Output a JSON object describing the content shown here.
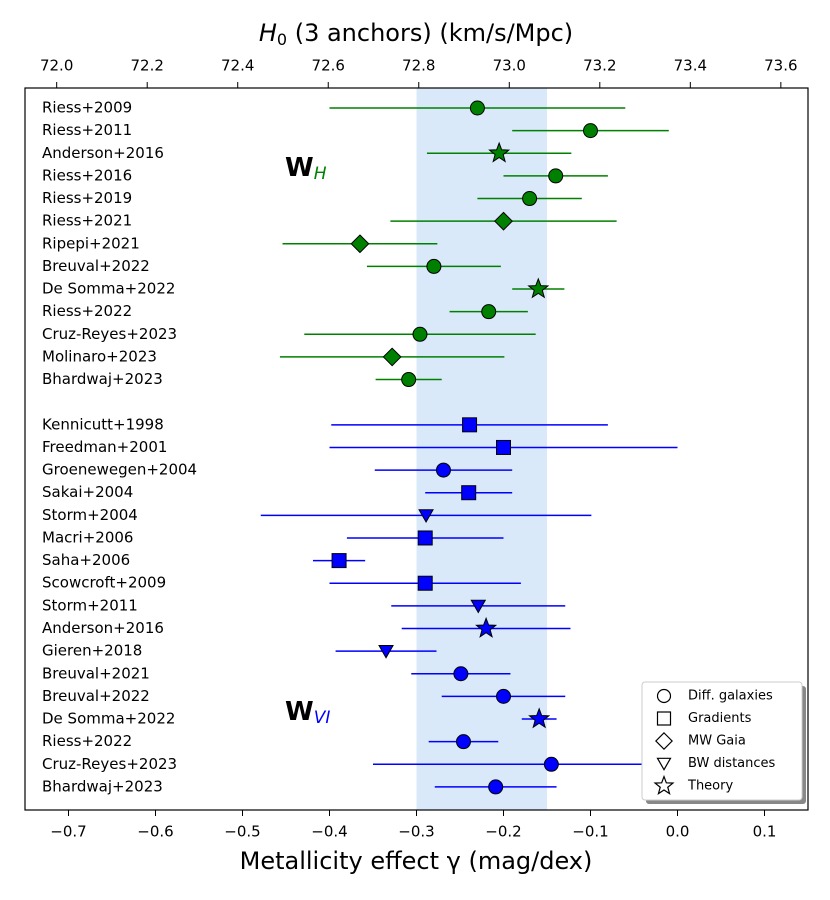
{
  "chart_data": {
    "type": "forest",
    "xlabel": "Metallicity effect γ (mag/dex)",
    "x2label": {
      "main": "H",
      "sub": "0",
      "rest": " (3 anchors) (km/s/Mpc)"
    },
    "xlim": [
      -0.75,
      0.15
    ],
    "xticks": [
      {
        "value": -0.7,
        "label": "−0.7"
      },
      {
        "value": -0.6,
        "label": "−0.6"
      },
      {
        "value": -0.5,
        "label": "−0.5"
      },
      {
        "value": -0.4,
        "label": "−0.4"
      },
      {
        "value": -0.3,
        "label": "−0.3"
      },
      {
        "value": -0.2,
        "label": "−0.2"
      },
      {
        "value": -0.1,
        "label": "−0.1"
      },
      {
        "value": 0,
        "label": "0.0"
      },
      0.1
    ],
    "x2lim": [
      71.93,
      73.66
    ],
    "x2ticks": [
      {
        "value": 72,
        "label": "72.0"
      },
      72.2,
      72.4,
      72.6,
      72.8,
      {
        "value": 73,
        "label": "73.0"
      },
      73.2,
      73.4,
      73.6
    ],
    "band": [
      -0.3,
      -0.15
    ],
    "band_color": "#d9e9f9",
    "groups": [
      {
        "label": "W",
        "label_sub": "H",
        "color": "#008000",
        "categories": [
          "Riess+2009",
          "Riess+2011",
          "Anderson+2016",
          "Riess+2016",
          "Riess+2019",
          "Riess+2021",
          "Ripepi+2021",
          "Breuval+2022",
          "De Somma+2022",
          "Riess+2022",
          "Cruz-Reyes+2023",
          "Molinaro+2023",
          "Bhardwaj+2023"
        ],
        "values": [
          -0.23,
          -0.1,
          -0.205,
          -0.14,
          -0.17,
          -0.2,
          -0.365,
          -0.28,
          -0.16,
          -0.217,
          -0.296,
          -0.328,
          -0.309
        ],
        "errors": [
          0.17,
          0.09,
          0.083,
          0.06,
          0.06,
          0.13,
          0.089,
          0.077,
          0.03,
          0.045,
          0.133,
          0.129,
          0.038
        ],
        "markers": [
          "circle",
          "circle",
          "star",
          "circle",
          "circle",
          "diamond",
          "diamond",
          "circle",
          "star",
          "circle",
          "circle",
          "diamond",
          "circle"
        ]
      },
      {
        "label": "W",
        "label_sub": "VI",
        "color": "#0000ff",
        "categories": [
          "Kennicutt+1998",
          "Freedman+2001",
          "Groenewegen+2004",
          "Sakai+2004",
          "Storm+2004",
          "Macri+2006",
          "Saha+2006",
          "Scowcroft+2009",
          "Storm+2011",
          "Anderson+2016",
          "Gieren+2018",
          "Breuval+2021",
          "Breuval+2022",
          "De Somma+2022",
          "Riess+2022",
          "Cruz-Reyes+2023",
          "Bhardwaj+2023"
        ],
        "values": [
          -0.239,
          -0.2,
          -0.269,
          -0.24,
          -0.289,
          -0.29,
          -0.389,
          -0.29,
          -0.229,
          -0.22,
          -0.335,
          -0.249,
          -0.2,
          -0.159,
          -0.246,
          -0.145,
          -0.209
        ],
        "errors": [
          0.159,
          0.2,
          0.079,
          0.05,
          0.19,
          0.09,
          0.03,
          0.11,
          0.1,
          0.097,
          0.058,
          0.057,
          0.071,
          0.02,
          0.04,
          0.205,
          0.07
        ],
        "markers": [
          "square",
          "square",
          "circle",
          "square",
          "triangle",
          "square",
          "square",
          "square",
          "triangle",
          "star",
          "triangle",
          "circle",
          "circle",
          "star",
          "circle",
          "circle",
          "circle"
        ]
      }
    ],
    "legend": [
      {
        "label": "Diff. galaxies",
        "marker": "circle"
      },
      {
        "label": "Gradients",
        "marker": "square"
      },
      {
        "label": "MW Gaia",
        "marker": "diamond"
      },
      {
        "label": "BW distances",
        "marker": "triangle"
      },
      {
        "label": "Theory",
        "marker": "star"
      }
    ],
    "legend_position": "lower right"
  }
}
